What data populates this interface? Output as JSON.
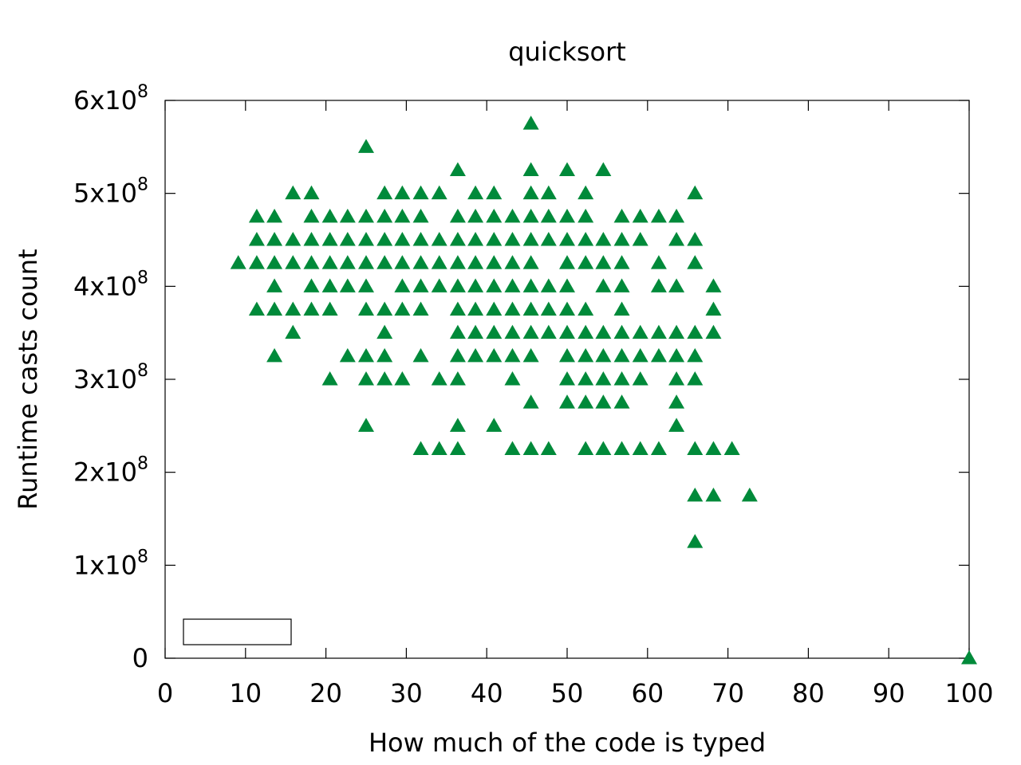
{
  "chart_data": {
    "type": "scatter",
    "title": "quicksort",
    "xlabel": "How much of the code is typed",
    "ylabel": "Runtime casts count",
    "xlim": [
      0,
      100
    ],
    "ylim": [
      0,
      600000000
    ],
    "x_ticks": [
      {
        "value": 0,
        "label": "0"
      },
      {
        "value": 10,
        "label": "10"
      },
      {
        "value": 20,
        "label": "20"
      },
      {
        "value": 30,
        "label": "30"
      },
      {
        "value": 40,
        "label": "40"
      },
      {
        "value": 50,
        "label": "50"
      },
      {
        "value": 60,
        "label": "60"
      },
      {
        "value": 70,
        "label": "70"
      },
      {
        "value": 80,
        "label": "80"
      },
      {
        "value": 90,
        "label": "90"
      },
      {
        "value": 100,
        "label": "100"
      }
    ],
    "y_ticks": [
      {
        "value": 0,
        "base": "0",
        "exp": ""
      },
      {
        "value": 100000000,
        "base": "1x10",
        "exp": "8"
      },
      {
        "value": 200000000,
        "base": "2x10",
        "exp": "8"
      },
      {
        "value": 300000000,
        "base": "3x10",
        "exp": "8"
      },
      {
        "value": 400000000,
        "base": "4x10",
        "exp": "8"
      },
      {
        "value": 500000000,
        "base": "5x10",
        "exp": "8"
      },
      {
        "value": 600000000,
        "base": "6x10",
        "exp": "8"
      }
    ],
    "grid": false,
    "legend": "bottom-left (empty box)",
    "marker": "triangle",
    "color": "#008a3a",
    "series": [
      {
        "points": [
          [
            45.5,
            575000000
          ],
          [
            25.0,
            550000000
          ],
          [
            36.4,
            525000000
          ],
          [
            45.5,
            525000000
          ],
          [
            50.0,
            525000000
          ],
          [
            54.5,
            525000000
          ],
          [
            15.9,
            500000000
          ],
          [
            18.2,
            500000000
          ],
          [
            27.3,
            500000000
          ],
          [
            29.5,
            500000000
          ],
          [
            31.8,
            500000000
          ],
          [
            34.1,
            500000000
          ],
          [
            38.6,
            500000000
          ],
          [
            40.9,
            500000000
          ],
          [
            45.5,
            500000000
          ],
          [
            47.7,
            500000000
          ],
          [
            52.3,
            500000000
          ],
          [
            65.9,
            500000000
          ],
          [
            11.4,
            475000000
          ],
          [
            13.6,
            475000000
          ],
          [
            18.2,
            475000000
          ],
          [
            20.5,
            475000000
          ],
          [
            22.7,
            475000000
          ],
          [
            25.0,
            475000000
          ],
          [
            27.3,
            475000000
          ],
          [
            29.5,
            475000000
          ],
          [
            31.8,
            475000000
          ],
          [
            36.4,
            475000000
          ],
          [
            38.6,
            475000000
          ],
          [
            40.9,
            475000000
          ],
          [
            43.2,
            475000000
          ],
          [
            45.5,
            475000000
          ],
          [
            47.7,
            475000000
          ],
          [
            50.0,
            475000000
          ],
          [
            52.3,
            475000000
          ],
          [
            56.8,
            475000000
          ],
          [
            59.1,
            475000000
          ],
          [
            61.4,
            475000000
          ],
          [
            63.6,
            475000000
          ],
          [
            11.4,
            450000000
          ],
          [
            13.6,
            450000000
          ],
          [
            15.9,
            450000000
          ],
          [
            18.2,
            450000000
          ],
          [
            20.5,
            450000000
          ],
          [
            22.7,
            450000000
          ],
          [
            25.0,
            450000000
          ],
          [
            27.3,
            450000000
          ],
          [
            29.5,
            450000000
          ],
          [
            31.8,
            450000000
          ],
          [
            34.1,
            450000000
          ],
          [
            36.4,
            450000000
          ],
          [
            38.6,
            450000000
          ],
          [
            40.9,
            450000000
          ],
          [
            43.2,
            450000000
          ],
          [
            45.5,
            450000000
          ],
          [
            47.7,
            450000000
          ],
          [
            50.0,
            450000000
          ],
          [
            52.3,
            450000000
          ],
          [
            54.5,
            450000000
          ],
          [
            56.8,
            450000000
          ],
          [
            59.1,
            450000000
          ],
          [
            63.6,
            450000000
          ],
          [
            65.9,
            450000000
          ],
          [
            9.1,
            425000000
          ],
          [
            11.4,
            425000000
          ],
          [
            13.6,
            425000000
          ],
          [
            15.9,
            425000000
          ],
          [
            18.2,
            425000000
          ],
          [
            20.5,
            425000000
          ],
          [
            22.7,
            425000000
          ],
          [
            25.0,
            425000000
          ],
          [
            27.3,
            425000000
          ],
          [
            29.5,
            425000000
          ],
          [
            31.8,
            425000000
          ],
          [
            34.1,
            425000000
          ],
          [
            36.4,
            425000000
          ],
          [
            38.6,
            425000000
          ],
          [
            40.9,
            425000000
          ],
          [
            43.2,
            425000000
          ],
          [
            45.5,
            425000000
          ],
          [
            50.0,
            425000000
          ],
          [
            52.3,
            425000000
          ],
          [
            54.5,
            425000000
          ],
          [
            56.8,
            425000000
          ],
          [
            61.4,
            425000000
          ],
          [
            65.9,
            425000000
          ],
          [
            13.6,
            400000000
          ],
          [
            18.2,
            400000000
          ],
          [
            20.5,
            400000000
          ],
          [
            22.7,
            400000000
          ],
          [
            25.0,
            400000000
          ],
          [
            29.5,
            400000000
          ],
          [
            31.8,
            400000000
          ],
          [
            34.1,
            400000000
          ],
          [
            36.4,
            400000000
          ],
          [
            38.6,
            400000000
          ],
          [
            40.9,
            400000000
          ],
          [
            43.2,
            400000000
          ],
          [
            45.5,
            400000000
          ],
          [
            47.7,
            400000000
          ],
          [
            50.0,
            400000000
          ],
          [
            54.5,
            400000000
          ],
          [
            56.8,
            400000000
          ],
          [
            61.4,
            400000000
          ],
          [
            63.6,
            400000000
          ],
          [
            68.2,
            400000000
          ],
          [
            11.4,
            375000000
          ],
          [
            13.6,
            375000000
          ],
          [
            15.9,
            375000000
          ],
          [
            18.2,
            375000000
          ],
          [
            20.5,
            375000000
          ],
          [
            25.0,
            375000000
          ],
          [
            27.3,
            375000000
          ],
          [
            29.5,
            375000000
          ],
          [
            31.8,
            375000000
          ],
          [
            36.4,
            375000000
          ],
          [
            38.6,
            375000000
          ],
          [
            40.9,
            375000000
          ],
          [
            43.2,
            375000000
          ],
          [
            45.5,
            375000000
          ],
          [
            47.7,
            375000000
          ],
          [
            50.0,
            375000000
          ],
          [
            52.3,
            375000000
          ],
          [
            56.8,
            375000000
          ],
          [
            68.2,
            375000000
          ],
          [
            15.9,
            350000000
          ],
          [
            27.3,
            350000000
          ],
          [
            36.4,
            350000000
          ],
          [
            38.6,
            350000000
          ],
          [
            40.9,
            350000000
          ],
          [
            43.2,
            350000000
          ],
          [
            45.5,
            350000000
          ],
          [
            47.7,
            350000000
          ],
          [
            50.0,
            350000000
          ],
          [
            52.3,
            350000000
          ],
          [
            54.5,
            350000000
          ],
          [
            56.8,
            350000000
          ],
          [
            59.1,
            350000000
          ],
          [
            61.4,
            350000000
          ],
          [
            63.6,
            350000000
          ],
          [
            65.9,
            350000000
          ],
          [
            68.2,
            350000000
          ],
          [
            13.6,
            325000000
          ],
          [
            22.7,
            325000000
          ],
          [
            25.0,
            325000000
          ],
          [
            27.3,
            325000000
          ],
          [
            31.8,
            325000000
          ],
          [
            36.4,
            325000000
          ],
          [
            38.6,
            325000000
          ],
          [
            40.9,
            325000000
          ],
          [
            43.2,
            325000000
          ],
          [
            45.5,
            325000000
          ],
          [
            50.0,
            325000000
          ],
          [
            52.3,
            325000000
          ],
          [
            54.5,
            325000000
          ],
          [
            56.8,
            325000000
          ],
          [
            59.1,
            325000000
          ],
          [
            61.4,
            325000000
          ],
          [
            63.6,
            325000000
          ],
          [
            65.9,
            325000000
          ],
          [
            20.5,
            300000000
          ],
          [
            25.0,
            300000000
          ],
          [
            27.3,
            300000000
          ],
          [
            29.5,
            300000000
          ],
          [
            34.1,
            300000000
          ],
          [
            36.4,
            300000000
          ],
          [
            43.2,
            300000000
          ],
          [
            50.0,
            300000000
          ],
          [
            52.3,
            300000000
          ],
          [
            54.5,
            300000000
          ],
          [
            56.8,
            300000000
          ],
          [
            59.1,
            300000000
          ],
          [
            63.6,
            300000000
          ],
          [
            65.9,
            300000000
          ],
          [
            45.5,
            275000000
          ],
          [
            50.0,
            275000000
          ],
          [
            52.3,
            275000000
          ],
          [
            54.5,
            275000000
          ],
          [
            56.8,
            275000000
          ],
          [
            63.6,
            275000000
          ],
          [
            25.0,
            250000000
          ],
          [
            36.4,
            250000000
          ],
          [
            40.9,
            250000000
          ],
          [
            63.6,
            250000000
          ],
          [
            31.8,
            225000000
          ],
          [
            34.1,
            225000000
          ],
          [
            36.4,
            225000000
          ],
          [
            43.2,
            225000000
          ],
          [
            45.5,
            225000000
          ],
          [
            47.7,
            225000000
          ],
          [
            52.3,
            225000000
          ],
          [
            54.5,
            225000000
          ],
          [
            56.8,
            225000000
          ],
          [
            59.1,
            225000000
          ],
          [
            61.4,
            225000000
          ],
          [
            65.9,
            225000000
          ],
          [
            68.2,
            225000000
          ],
          [
            70.5,
            225000000
          ],
          [
            65.9,
            175000000
          ],
          [
            68.2,
            175000000
          ],
          [
            72.7,
            175000000
          ],
          [
            65.9,
            125000000
          ],
          [
            100,
            0
          ]
        ]
      }
    ]
  }
}
